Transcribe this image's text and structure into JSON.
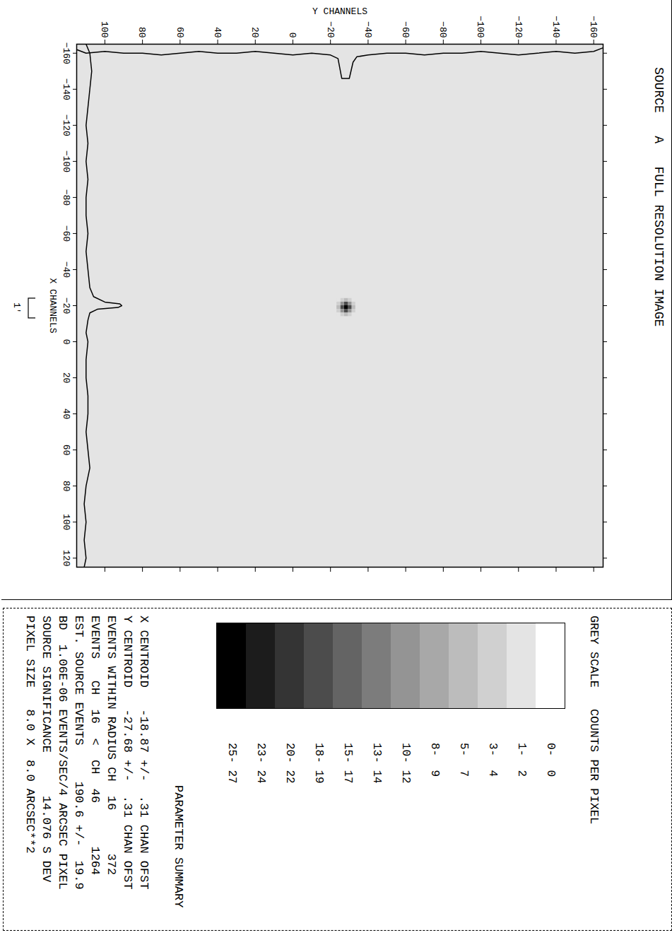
{
  "chart_data": {
    "type": "heatmap",
    "title": "SOURCE   A   FULL RESOLUTION IMAGE",
    "x_label": "X CHANNELS",
    "y_label": "Y CHANNELS",
    "xlim": [
      -165,
      125
    ],
    "ylim": [
      -165,
      115
    ],
    "xticks": [
      -160,
      -140,
      -120,
      -100,
      -80,
      -60,
      -40,
      -20,
      0,
      20,
      40,
      60,
      80,
      100,
      120
    ],
    "yticks": [
      -160,
      -140,
      -120,
      -100,
      -80,
      -60,
      -40,
      -20,
      0,
      20,
      40,
      60,
      80,
      100
    ],
    "background_counts": 2,
    "source_cells": {
      "x": [
        -23,
        -21,
        -19,
        -17,
        -15
      ],
      "y": [
        -32,
        -30,
        -28,
        -26,
        -24
      ],
      "counts": [
        [
          2,
          4,
          6,
          4,
          2
        ],
        [
          4,
          12,
          18,
          12,
          4
        ],
        [
          6,
          18,
          26,
          18,
          6
        ],
        [
          4,
          12,
          18,
          12,
          4
        ],
        [
          2,
          4,
          6,
          4,
          2
        ]
      ]
    },
    "x_profile": {
      "x": [
        -165,
        -160,
        -150,
        -140,
        -130,
        -120,
        -110,
        -100,
        -90,
        -80,
        -70,
        -60,
        -50,
        -40,
        -30,
        -25,
        -22,
        -21,
        -20,
        -19,
        -18,
        -16,
        -12,
        -5,
        0,
        10,
        20,
        30,
        40,
        50,
        60,
        70,
        80,
        90,
        100,
        110,
        120,
        125
      ],
      "y": [
        110,
        108,
        107,
        108,
        109,
        110,
        109,
        110,
        109,
        110,
        110,
        109,
        110,
        109,
        108,
        106,
        100,
        92,
        91,
        93,
        104,
        108,
        109,
        110,
        109,
        110,
        110,
        109,
        109,
        110,
        109,
        108,
        110,
        111,
        110,
        111,
        110,
        111
      ]
    },
    "y_profile": {
      "y": [
        -165,
        -160,
        -150,
        -140,
        -130,
        -120,
        -110,
        -100,
        -90,
        -80,
        -70,
        -60,
        -50,
        -40,
        -34,
        -32,
        -30,
        -29,
        -28,
        -27,
        -26,
        -24,
        -20,
        -10,
        0,
        10,
        20,
        30,
        40,
        50,
        60,
        70,
        80,
        90,
        100,
        110,
        115
      ],
      "x": [
        -163,
        -161,
        -160,
        -161,
        -160,
        -159,
        -160,
        -161,
        -160,
        -160,
        -159,
        -160,
        -160,
        -159,
        -158,
        -155,
        -146,
        -146,
        -146,
        -146,
        -146,
        -157,
        -159,
        -160,
        -159,
        -160,
        -161,
        -160,
        -160,
        -161,
        -160,
        -159,
        -160,
        -160,
        -161,
        -160,
        -162
      ]
    },
    "scale_bar": {
      "label": "1'",
      "x": [
        -24,
        -13
      ]
    },
    "color_bar": {
      "title": "GREY SCALE",
      "subtitle": "COUNTS PER PIXEL",
      "levels": [
        {
          "min": 0,
          "max": 0,
          "label": "0-  0"
        },
        {
          "min": 1,
          "max": 2,
          "label": "1-  2"
        },
        {
          "min": 3,
          "max": 4,
          "label": "3-  4"
        },
        {
          "min": 5,
          "max": 7,
          "label": "5-  7"
        },
        {
          "min": 8,
          "max": 9,
          "label": "8-  9"
        },
        {
          "min": 10,
          "max": 12,
          "label": "10- 12"
        },
        {
          "min": 13,
          "max": 14,
          "label": "13- 14"
        },
        {
          "min": 15,
          "max": 17,
          "label": "15- 17"
        },
        {
          "min": 18,
          "max": 19,
          "label": "18- 19"
        },
        {
          "min": 20,
          "max": 22,
          "label": "20- 22"
        },
        {
          "min": 23,
          "max": 24,
          "label": "23- 24"
        },
        {
          "min": 25,
          "max": 27,
          "label": "25- 27"
        }
      ],
      "colors": [
        "#ffffff",
        "#e4e4e4",
        "#d0d0d0",
        "#bcbcbc",
        "#a8a8a8",
        "#949494",
        "#7c7c7c",
        "#646464",
        "#4c4c4c",
        "#343434",
        "#1c1c1c",
        "#000000"
      ]
    },
    "parameter_summary": {
      "title": "PARAMETER SUMMARY",
      "lines": [
        "X CENTROID   -18.87 +/-  .31 CHAN OFST",
        "Y CENTROID   -27.68 +/-  .31 CHAN OFST",
        "EVENTS WITHIN RADIUS CH  16      372",
        "EVENTS   CH  16  <  CH  46      1264",
        "EST. SOURCE EVENTS     190.6 +/-  19.9",
        "BD  1.06E-06 EVENTS/SEC/4 ARCSEC PIXEL",
        "SOURCE SIGNIFICANCE      14.076 S DEV",
        "PIXEL SIZE   8.0 X  8.0 ARCSEC**2"
      ]
    }
  }
}
